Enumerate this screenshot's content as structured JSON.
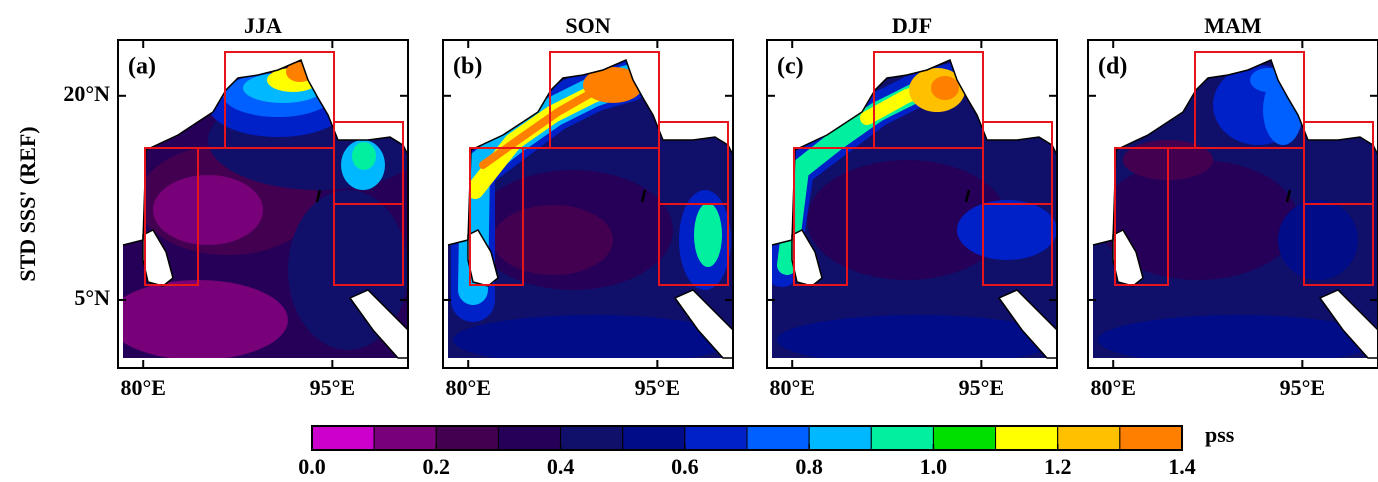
{
  "figure": {
    "ylabel": "STD SSS' (REF)",
    "xlim": [
      78,
      101
    ],
    "ylim": [
      0,
      24.1
    ],
    "xticks": [
      {
        "value": 80,
        "label": "80°E"
      },
      {
        "value": 95,
        "label": "95°E"
      }
    ],
    "yticks": [
      {
        "value": 5,
        "label": "5°N"
      },
      {
        "value": 20,
        "label": "20°N"
      }
    ],
    "panels": [
      {
        "title": "JJA",
        "label": "(a)"
      },
      {
        "title": "SON",
        "label": "(b)"
      },
      {
        "title": "DJF",
        "label": "(c)"
      },
      {
        "title": "MAM",
        "label": "(d)"
      }
    ]
  },
  "colorbar": {
    "unit": "pss",
    "levels": [
      0,
      0.1,
      0.2,
      0.3,
      0.4,
      0.5,
      0.6,
      0.7,
      0.8,
      0.9,
      1,
      1.1,
      1.2,
      1.3,
      1.4
    ],
    "colors": [
      "#cc00cc",
      "#780078",
      "#440050",
      "#260058",
      "#10106a",
      "#000c88",
      "#0020c8",
      "#0060ff",
      "#00b8ff",
      "#00f0a0",
      "#00e000",
      "#ffff00",
      "#ffc000",
      "#ff8000",
      "#ff0000"
    ],
    "ticks": [
      {
        "value": 0,
        "label": "0.0"
      },
      0.2,
      0.4,
      0.6,
      0.8,
      {
        "value": 1,
        "label": "1.0"
      },
      1.2,
      1.4
    ]
  }
}
